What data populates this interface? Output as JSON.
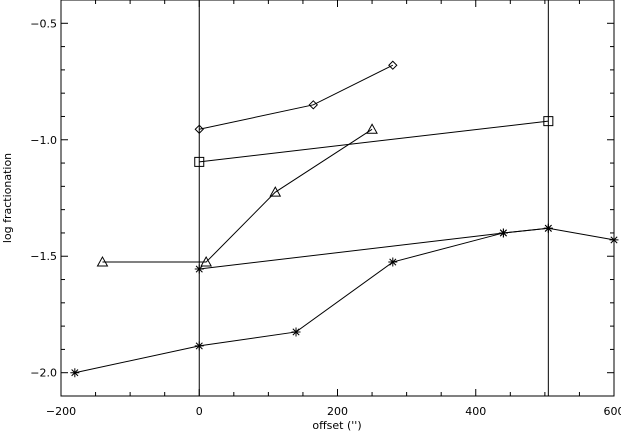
{
  "chart_data": {
    "type": "scatter",
    "title": "",
    "xlabel": "offset ('')",
    "ylabel": "log fractionation",
    "xlim": [
      -200,
      600
    ],
    "ylim": [
      -2.1,
      -0.4
    ],
    "xticks": [
      -200,
      0,
      200,
      400,
      600
    ],
    "xtick_labels": [
      "−200",
      "0",
      "200",
      "400",
      "600"
    ],
    "yticks": [
      -2.0,
      -1.5,
      -1.0,
      -0.5
    ],
    "ytick_labels": [
      "−2.0",
      "−1.5",
      "−1.0",
      "−0.5"
    ],
    "vlines": [
      0,
      505
    ],
    "grid": false,
    "line_color": "#000000",
    "series": [
      {
        "marker": "diamond",
        "x": [
          0,
          165,
          280
        ],
        "y": [
          -0.955,
          -0.85,
          -0.68
        ]
      },
      {
        "marker": "square",
        "x": [
          0,
          505
        ],
        "y": [
          -1.095,
          -0.92
        ]
      },
      {
        "marker": "triangle",
        "x": [
          -140,
          10,
          110,
          250
        ],
        "y": [
          -1.525,
          -1.525,
          -1.225,
          -0.955
        ]
      },
      {
        "marker": "asterisk",
        "x": [
          0,
          440,
          505,
          600
        ],
        "y": [
          -1.555,
          -1.4,
          -1.38,
          -1.43
        ]
      },
      {
        "marker": "asterisk",
        "x": [
          -180,
          0,
          140,
          280,
          440,
          505
        ],
        "y": [
          -2.0,
          -1.885,
          -1.825,
          -1.525,
          -1.4,
          -1.38
        ]
      }
    ]
  }
}
